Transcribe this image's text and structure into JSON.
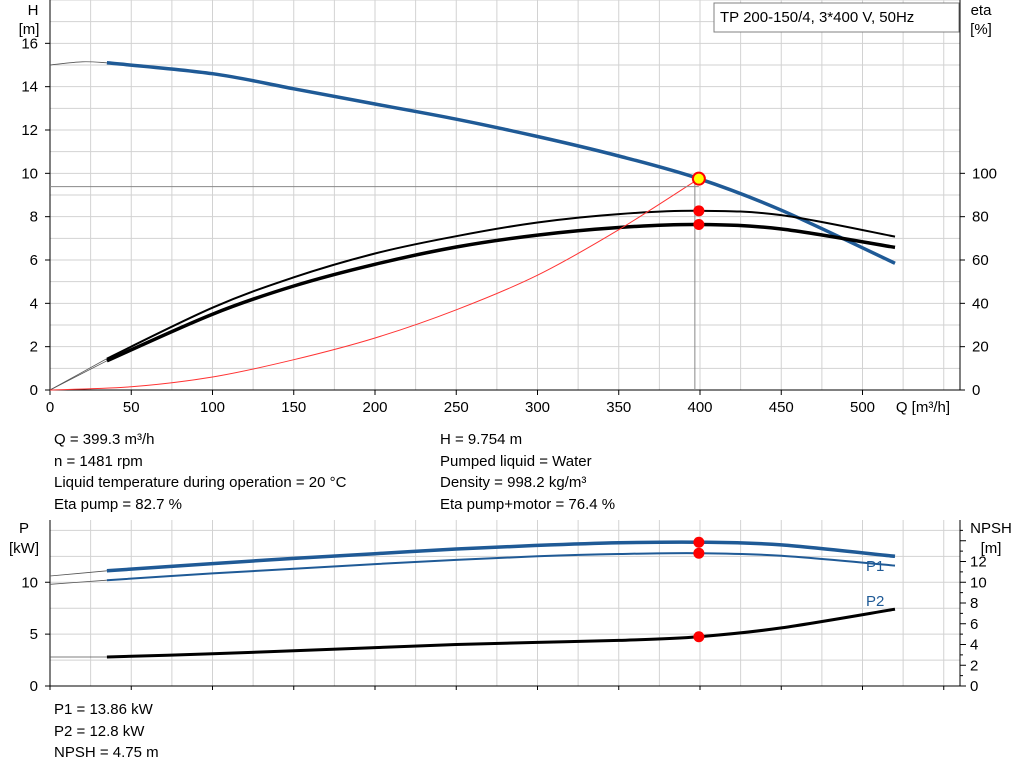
{
  "chart_data": [
    {
      "type": "line",
      "title": "TP 200-150/4, 3*400 V, 50Hz",
      "xlabel": "Q [m³/h]",
      "ylabel_left": [
        "H",
        "[m]"
      ],
      "ylabel_right": [
        "eta",
        "[%]"
      ],
      "xlim": [
        0,
        560
      ],
      "ylim_left": [
        0,
        18
      ],
      "ylim_right": [
        0,
        180
      ],
      "x_ticks": [
        "0",
        "50",
        "100",
        "150",
        "200",
        "250",
        "300",
        "350",
        "400",
        "450",
        "500"
      ],
      "y_ticks_left": [
        "0",
        "2",
        "4",
        "6",
        "8",
        "10",
        "12",
        "14",
        "16"
      ],
      "y_ticks_right": [
        "0",
        "20",
        "40",
        "60",
        "80",
        "100"
      ],
      "grid": true,
      "series": [
        {
          "key": "H",
          "axis": "left",
          "color": "#1f5a96",
          "width": 3.5,
          "x": [
            35,
            100,
            150,
            200,
            250,
            300,
            350,
            399.3,
            450,
            520
          ],
          "y": [
            15.1,
            14.6,
            13.9,
            13.2,
            12.5,
            11.7,
            10.8,
            9.754,
            8.3,
            5.85
          ]
        },
        {
          "key": "eta_pump",
          "axis": "right",
          "color": "#000000",
          "width": 2,
          "x": [
            35,
            100,
            150,
            200,
            250,
            300,
            350,
            399.3,
            450,
            520
          ],
          "y": [
            14.5,
            38,
            52,
            63,
            71,
            77.3,
            81.2,
            82.7,
            80.7,
            70.8
          ]
        },
        {
          "key": "eta_total",
          "axis": "right",
          "color": "#000000",
          "width": 3.5,
          "x": [
            35,
            100,
            150,
            200,
            250,
            300,
            350,
            399.3,
            450,
            520
          ],
          "y": [
            13.5,
            35,
            48,
            58,
            66,
            71.5,
            75,
            76.4,
            74.3,
            65.8
          ]
        },
        {
          "key": "system",
          "axis": "left",
          "color": "#ff3333",
          "width": 1,
          "x": [
            0,
            50,
            100,
            150,
            200,
            250,
            300,
            350,
            399.3
          ],
          "y": [
            0,
            0.15,
            0.6,
            1.4,
            2.4,
            3.7,
            5.3,
            7.4,
            9.754
          ]
        }
      ],
      "extensions": [
        {
          "axis": "left",
          "x": [
            0,
            20,
            35
          ],
          "y": [
            15.0,
            15.15,
            15.1
          ]
        },
        {
          "axis": "right",
          "x": [
            0,
            35
          ],
          "y": [
            0,
            14.5
          ]
        },
        {
          "axis": "right",
          "x": [
            0,
            35
          ],
          "y": [
            0,
            13.5
          ]
        }
      ],
      "operating_point": {
        "Q": 399.3,
        "H": 9.754,
        "eta_pump": 82.7,
        "eta_total": 76.4
      },
      "legend_box": "top-right"
    },
    {
      "type": "line",
      "ylabel_left": [
        "P",
        "[kW]"
      ],
      "ylabel_right": [
        "NPSH",
        "[m]"
      ],
      "xlim": [
        0,
        560
      ],
      "ylim_left": [
        0,
        16
      ],
      "ylim_right": [
        0,
        16
      ],
      "y_ticks_left": [
        "0",
        "5",
        "10"
      ],
      "y_ticks_right": [
        "0",
        "2",
        "4",
        "6",
        "8",
        "10",
        "12"
      ],
      "grid": true,
      "series": [
        {
          "key": "P1",
          "name": "P1",
          "axis": "left",
          "color": "#1f5a96",
          "width": 3.5,
          "x": [
            35,
            100,
            150,
            200,
            250,
            300,
            350,
            399.3,
            450,
            520
          ],
          "y": [
            11.1,
            11.8,
            12.3,
            12.75,
            13.2,
            13.55,
            13.8,
            13.86,
            13.6,
            12.5
          ]
        },
        {
          "key": "P2",
          "name": "P2",
          "axis": "left",
          "color": "#1f5a96",
          "width": 2,
          "x": [
            35,
            100,
            150,
            200,
            250,
            300,
            350,
            399.3,
            450,
            520
          ],
          "y": [
            10.2,
            10.85,
            11.3,
            11.75,
            12.15,
            12.5,
            12.72,
            12.8,
            12.55,
            11.6
          ]
        },
        {
          "key": "NPSH",
          "axis": "right",
          "color": "#000000",
          "width": 3,
          "x": [
            35,
            100,
            150,
            200,
            250,
            300,
            350,
            399.3,
            450,
            520
          ],
          "y": [
            2.8,
            3.1,
            3.4,
            3.7,
            4.0,
            4.2,
            4.4,
            4.75,
            5.6,
            7.4
          ]
        }
      ],
      "extensions": [
        {
          "axis": "left",
          "x": [
            0,
            35
          ],
          "y": [
            10.6,
            11.1
          ]
        },
        {
          "axis": "left",
          "x": [
            0,
            35
          ],
          "y": [
            9.8,
            10.2
          ]
        },
        {
          "axis": "right",
          "x": [
            0,
            35
          ],
          "y": [
            2.8,
            2.8
          ]
        }
      ],
      "operating_point": {
        "Q": 399.3,
        "P1": 13.86,
        "P2": 12.8,
        "NPSH": 4.75
      }
    }
  ],
  "info": {
    "q": "Q = 399.3 m³/h",
    "n": "n = 1481 rpm",
    "temp": "Liquid temperature during operation = 20 °C",
    "eta_pump": "Eta pump = 82.7 %",
    "h": "H = 9.754 m",
    "liquid": "Pumped liquid = Water",
    "density": "Density = 998.2 kg/m³",
    "eta_total": "Eta pump+motor = 76.4 %",
    "p1": "P1 = 13.86 kW",
    "p2": "P2 = 12.8 kW",
    "npsh": "NPSH = 4.75 m"
  },
  "colors": {
    "grid": "#d2d2d2",
    "blue": "#1f5a96",
    "marker": "#ff0000",
    "marker_op": "#ffff00",
    "system": "#ff3333",
    "guide": "#888888"
  }
}
